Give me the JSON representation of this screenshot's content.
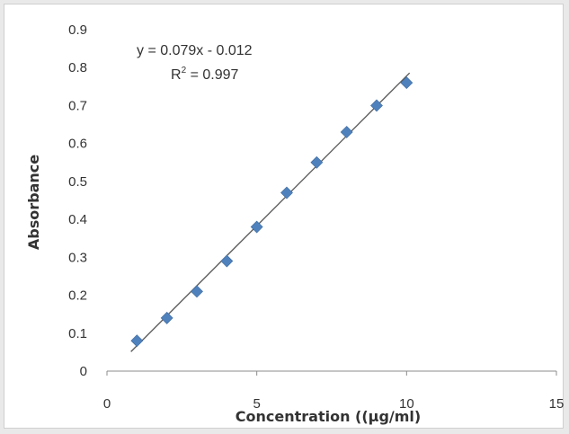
{
  "chart_data": {
    "type": "scatter",
    "title": "",
    "xlabel": "Concentration ((µg/ml)",
    "ylabel": "Absorbance",
    "xlim": [
      0,
      15
    ],
    "ylim": [
      0,
      0.9
    ],
    "x_ticks": [
      0,
      5,
      10,
      15
    ],
    "y_ticks": [
      0,
      0.1,
      0.2,
      0.3,
      0.4,
      0.5,
      0.6,
      0.7,
      0.8,
      0.9
    ],
    "grid": false,
    "legend": "none",
    "series": [
      {
        "x": [
          1,
          2,
          3,
          4,
          5,
          6,
          7,
          8,
          9,
          10
        ],
        "y": [
          0.08,
          0.14,
          0.21,
          0.29,
          0.38,
          0.47,
          0.55,
          0.63,
          0.7,
          0.76
        ],
        "marker": "diamond",
        "color": "#4f81bd"
      }
    ],
    "trendline": {
      "type": "linear",
      "slope": 0.079,
      "intercept": -0.012,
      "x_range": [
        1,
        10
      ],
      "color": "#555555"
    },
    "annotations": {
      "equation": "y = 0.079x - 0.012",
      "r2_prefix": "R",
      "r2_sup": "2",
      "r2_value": " = 0.997"
    }
  }
}
